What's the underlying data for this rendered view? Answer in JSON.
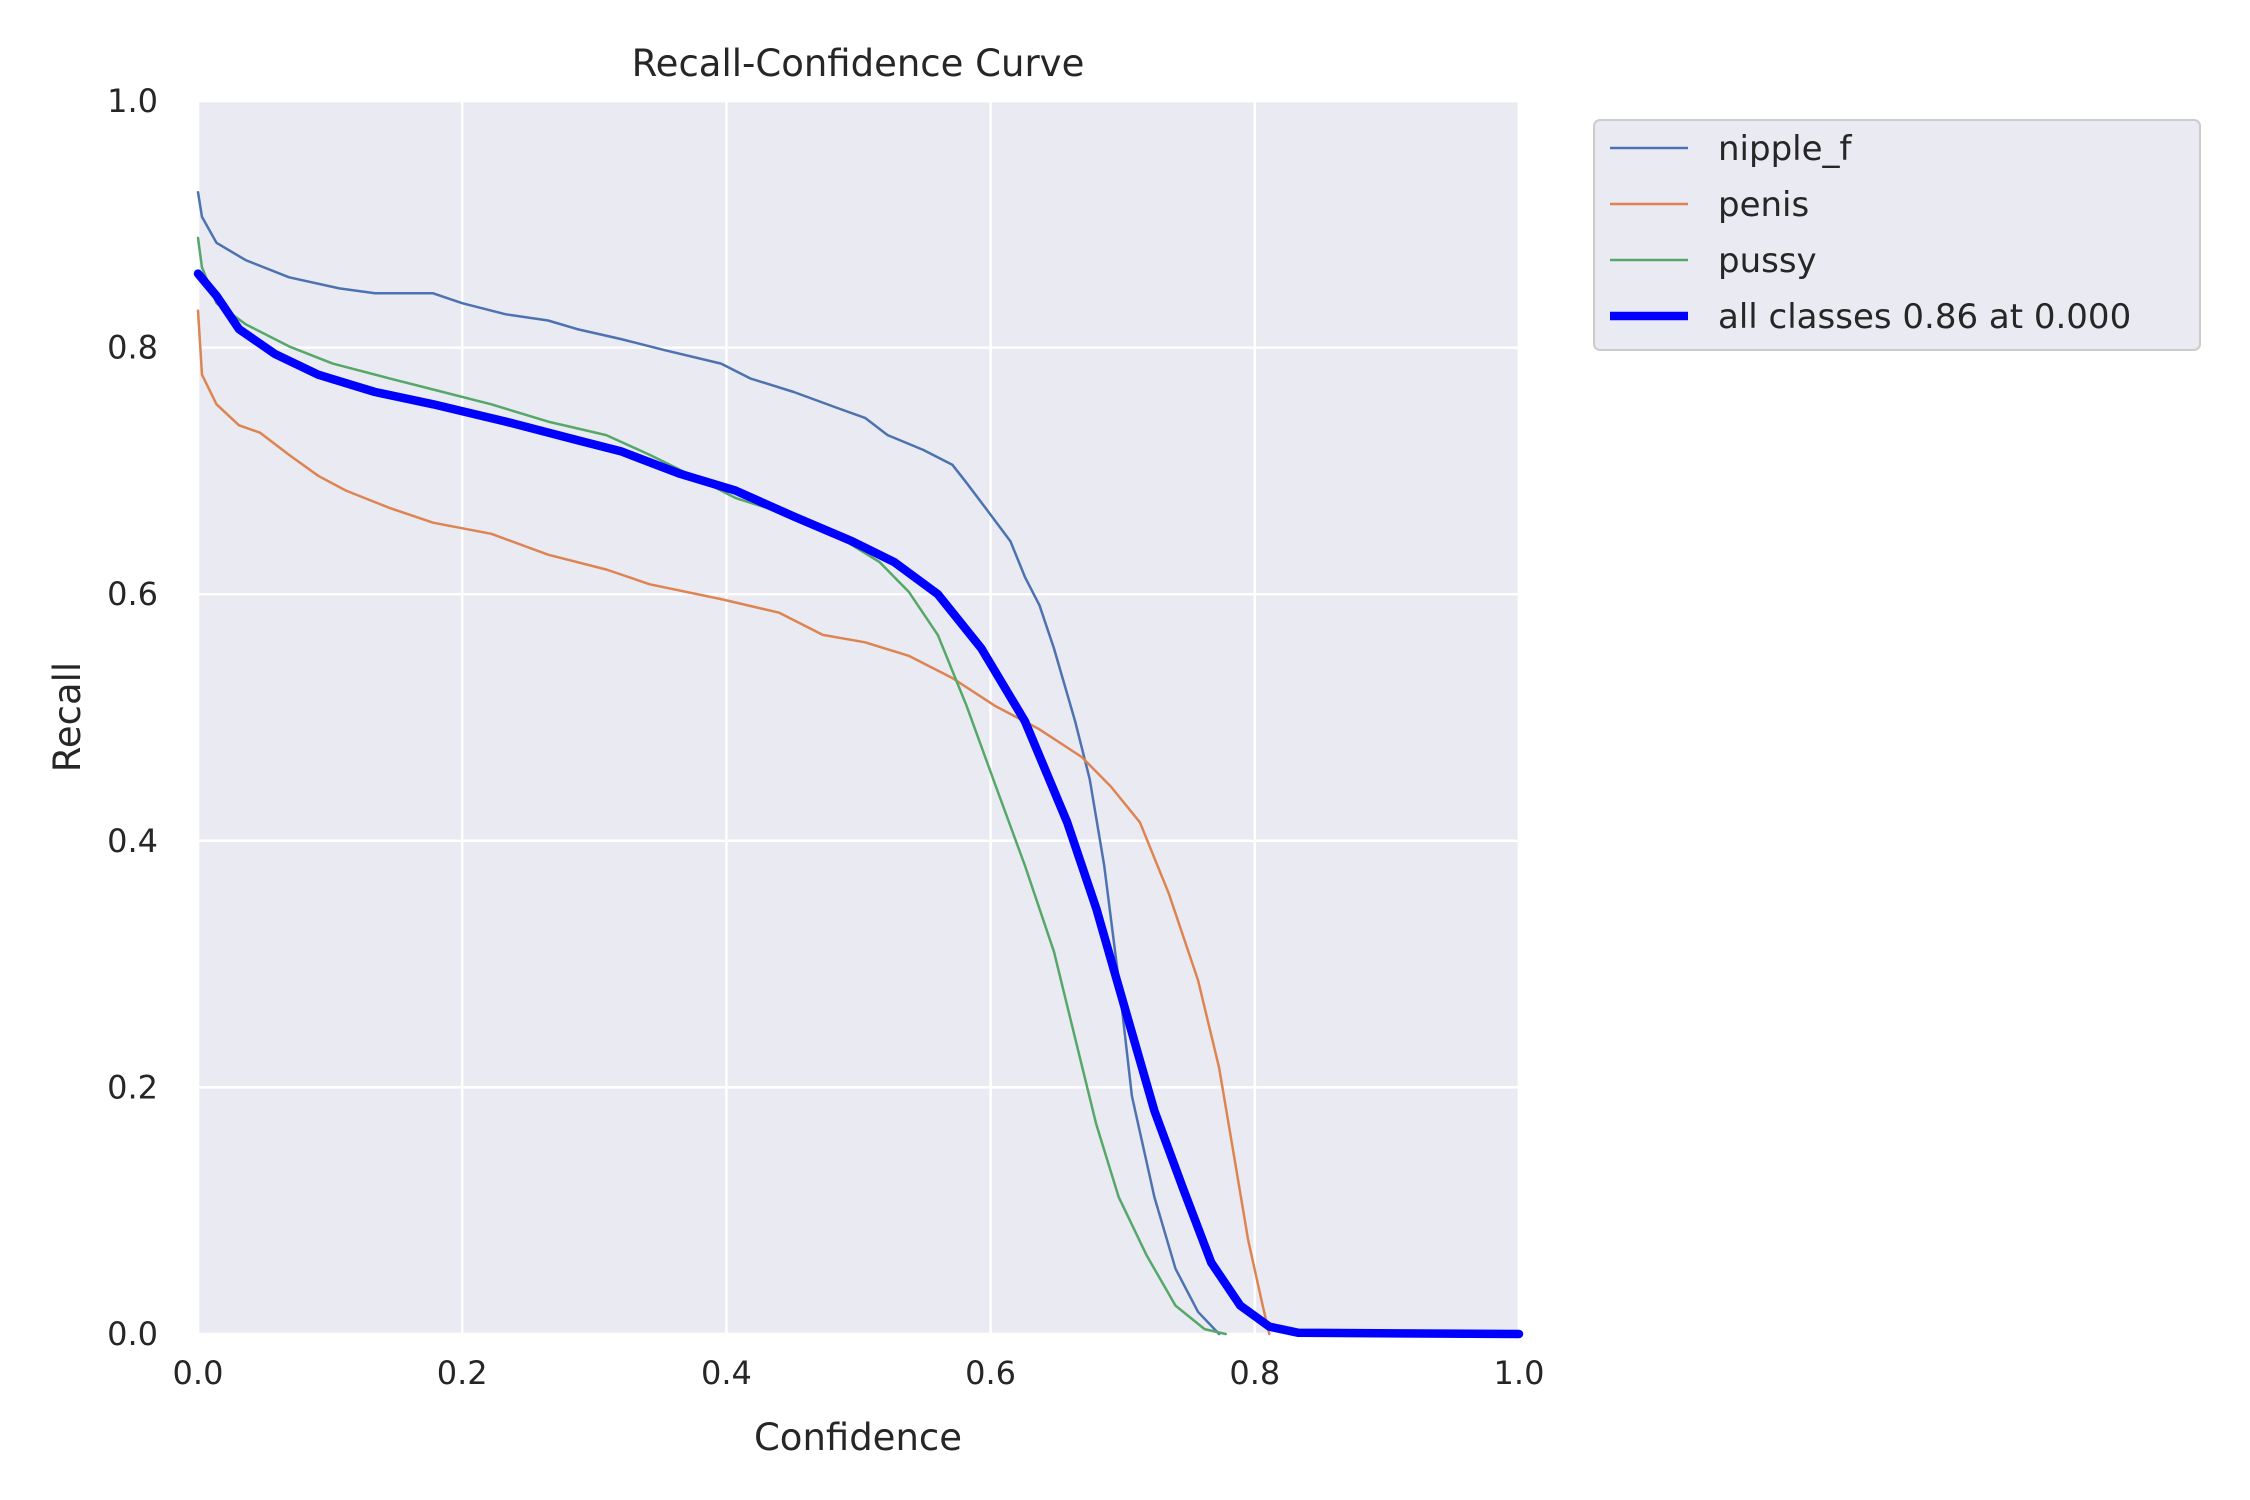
{
  "chart_data": {
    "type": "line",
    "title": "Recall-Confidence Curve",
    "xlabel": "Confidence",
    "ylabel": "Recall",
    "xlim": [
      0,
      1
    ],
    "ylim": [
      0,
      1
    ],
    "xticks": [
      "0.0",
      "0.2",
      "0.4",
      "0.6",
      "0.8",
      "1.0"
    ],
    "yticks": [
      "0.0",
      "0.2",
      "0.4",
      "0.6",
      "0.8",
      "1.0"
    ],
    "grid": true,
    "background": "#eaeaf2",
    "legend_position": "outside-top-right",
    "series": [
      {
        "name": "nipple_f",
        "color": "#4c72b0",
        "x": [
          0,
          0.003,
          0.014,
          0.036,
          0.069,
          0.107,
          0.134,
          0.178,
          0.2,
          0.233,
          0.265,
          0.287,
          0.32,
          0.353,
          0.396,
          0.418,
          0.451,
          0.484,
          0.505,
          0.522,
          0.549,
          0.571,
          0.582,
          0.594,
          0.615,
          0.626,
          0.637,
          0.648,
          0.664,
          0.675,
          0.686,
          0.697,
          0.707,
          0.724,
          0.74,
          0.757,
          0.773
        ],
        "y": [
          0.926,
          0.906,
          0.885,
          0.871,
          0.857,
          0.848,
          0.844,
          0.844,
          0.836,
          0.827,
          0.822,
          0.815,
          0.807,
          0.798,
          0.787,
          0.775,
          0.764,
          0.751,
          0.743,
          0.729,
          0.717,
          0.705,
          0.69,
          0.673,
          0.643,
          0.614,
          0.591,
          0.556,
          0.497,
          0.45,
          0.38,
          0.287,
          0.193,
          0.111,
          0.053,
          0.018,
          0
        ]
      },
      {
        "name": "penis",
        "color": "#dd8452",
        "x": [
          0,
          0.003,
          0.014,
          0.031,
          0.047,
          0.069,
          0.091,
          0.112,
          0.145,
          0.178,
          0.222,
          0.265,
          0.309,
          0.342,
          0.396,
          0.44,
          0.473,
          0.505,
          0.538,
          0.571,
          0.604,
          0.636,
          0.669,
          0.691,
          0.713,
          0.735,
          0.757,
          0.773,
          0.784,
          0.795,
          0.806,
          0.811
        ],
        "y": [
          0.83,
          0.778,
          0.754,
          0.737,
          0.731,
          0.713,
          0.696,
          0.684,
          0.67,
          0.658,
          0.649,
          0.632,
          0.62,
          0.608,
          0.596,
          0.585,
          0.567,
          0.561,
          0.55,
          0.532,
          0.509,
          0.491,
          0.468,
          0.444,
          0.415,
          0.357,
          0.287,
          0.216,
          0.146,
          0.076,
          0.023,
          0
        ]
      },
      {
        "name": "pussy",
        "color": "#55a868",
        "x": [
          0,
          0.003,
          0.014,
          0.036,
          0.069,
          0.102,
          0.145,
          0.178,
          0.222,
          0.265,
          0.309,
          0.342,
          0.374,
          0.407,
          0.451,
          0.484,
          0.516,
          0.538,
          0.56,
          0.582,
          0.604,
          0.626,
          0.648,
          0.664,
          0.68,
          0.697,
          0.718,
          0.74,
          0.762,
          0.778
        ],
        "y": [
          0.889,
          0.865,
          0.836,
          0.819,
          0.801,
          0.787,
          0.775,
          0.766,
          0.754,
          0.74,
          0.729,
          0.713,
          0.696,
          0.678,
          0.663,
          0.647,
          0.626,
          0.602,
          0.567,
          0.509,
          0.444,
          0.38,
          0.31,
          0.24,
          0.17,
          0.111,
          0.064,
          0.023,
          0.004,
          0
        ]
      },
      {
        "name": "all classes 0.86 at 0.000",
        "color": "#0000ff",
        "bold": true,
        "x": [
          0,
          0.014,
          0.031,
          0.058,
          0.091,
          0.134,
          0.178,
          0.233,
          0.287,
          0.32,
          0.364,
          0.407,
          0.451,
          0.495,
          0.527,
          0.56,
          0.593,
          0.626,
          0.658,
          0.68,
          0.702,
          0.724,
          0.746,
          0.767,
          0.789,
          0.811,
          0.833,
          1
        ],
        "y": [
          0.86,
          0.842,
          0.815,
          0.795,
          0.778,
          0.764,
          0.754,
          0.74,
          0.725,
          0.716,
          0.698,
          0.684,
          0.663,
          0.643,
          0.626,
          0.6,
          0.556,
          0.497,
          0.415,
          0.345,
          0.263,
          0.181,
          0.117,
          0.058,
          0.023,
          0.006,
          0.001,
          0
        ]
      }
    ]
  }
}
